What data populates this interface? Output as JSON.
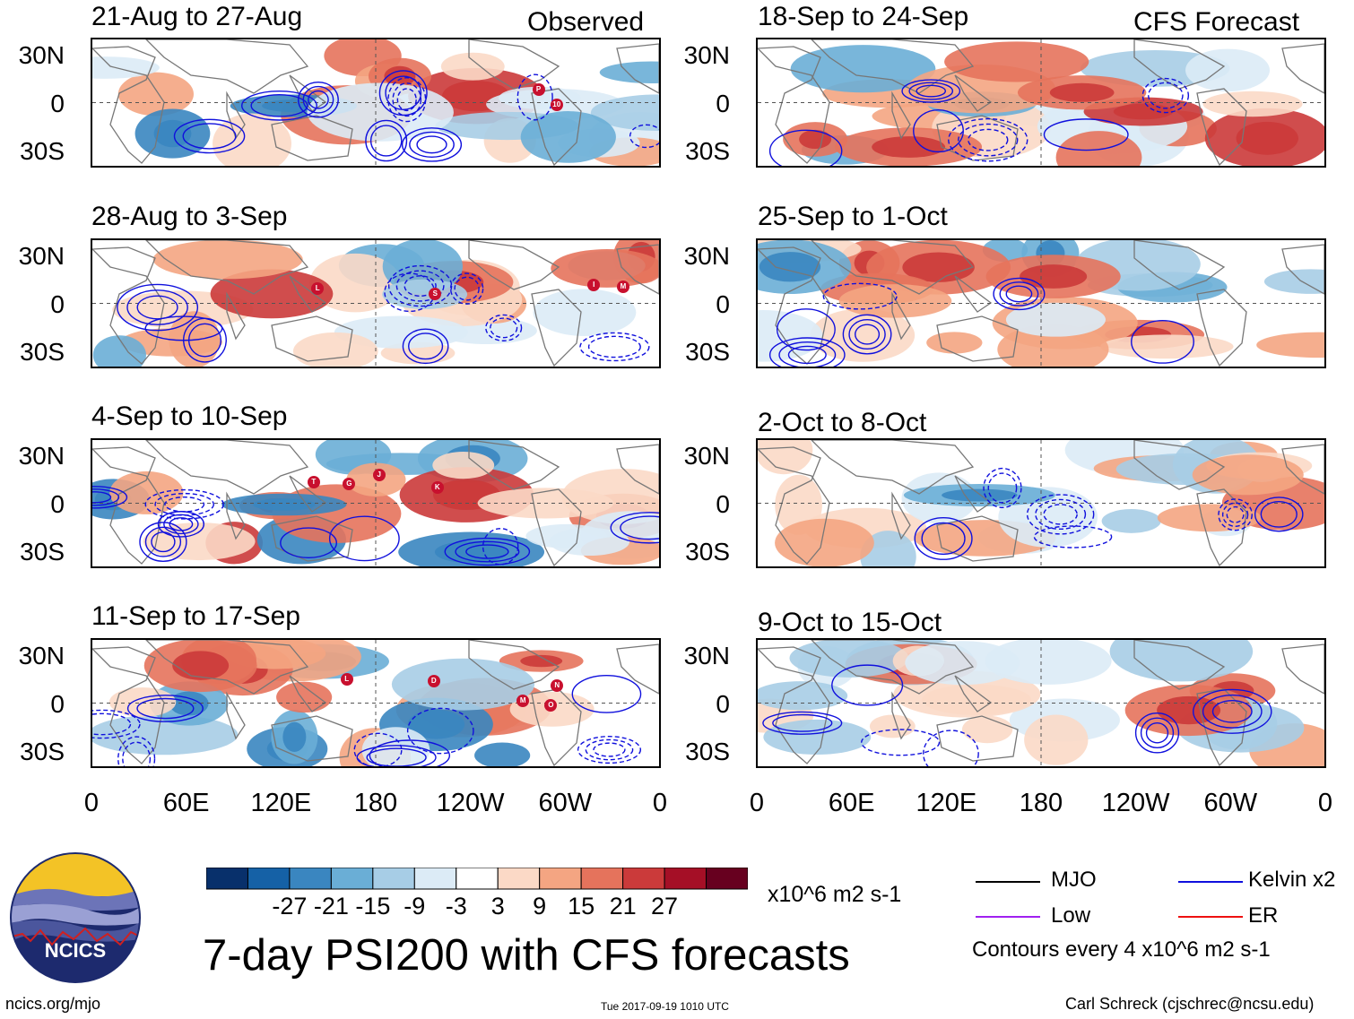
{
  "header": {
    "observed_label": "Observed",
    "forecast_label": "CFS Forecast"
  },
  "lat_labels": [
    "30N",
    "0",
    "30S"
  ],
  "lon_labels": [
    "0",
    "60E",
    "120E",
    "180",
    "120W",
    "60W",
    "0"
  ],
  "panels_left": [
    {
      "title": "21-Aug to 27-Aug",
      "storms": [
        "P",
        "10"
      ]
    },
    {
      "title": "28-Aug to 3-Sep",
      "storms": [
        "M",
        "S",
        "L",
        "I"
      ]
    },
    {
      "title": "4-Sep to 10-Sep",
      "storms": [
        "G",
        "T",
        "K",
        "J"
      ]
    },
    {
      "title": "11-Sep to 17-Sep",
      "storms": [
        "D",
        "O",
        "N",
        "M",
        "L"
      ]
    }
  ],
  "panels_right": [
    {
      "title": "18-Sep to 24-Sep"
    },
    {
      "title": "25-Sep to 1-Oct"
    },
    {
      "title": "2-Oct to 8-Oct"
    },
    {
      "title": "9-Oct to 15-Oct"
    }
  ],
  "colorbar": {
    "colors": [
      "#08306b",
      "#1561a6",
      "#3a86c0",
      "#6aaed6",
      "#a7cde6",
      "#dcebf6",
      "#ffffff",
      "#fbd9c6",
      "#f4a582",
      "#e5735c",
      "#cb3a3a",
      "#a50f26",
      "#67001f"
    ],
    "tick_labels": [
      "-27",
      "-21",
      "-15",
      "-9",
      "-3",
      "3",
      "9",
      "15",
      "21",
      "27"
    ],
    "units": "x10^6 m2 s-1"
  },
  "legend": {
    "items": [
      {
        "label": "MJO",
        "color": "#000000"
      },
      {
        "label": "Kelvin x2",
        "color": "#1010dd"
      },
      {
        "label": "Low",
        "color": "#a020f0"
      },
      {
        "label": "ER",
        "color": "#ee1010"
      }
    ],
    "contour_note": "Contours every 4 x10^6 m2 s-1"
  },
  "logo": {
    "text": "NCICS"
  },
  "main_title": "7-day PSI200 with CFS forecasts",
  "footer": {
    "url": "ncics.org/mjo",
    "timestamp": "Tue 2017-09-19 1010 UTC",
    "credit": "Carl Schreck (cjschrec@ncsu.edu)"
  }
}
